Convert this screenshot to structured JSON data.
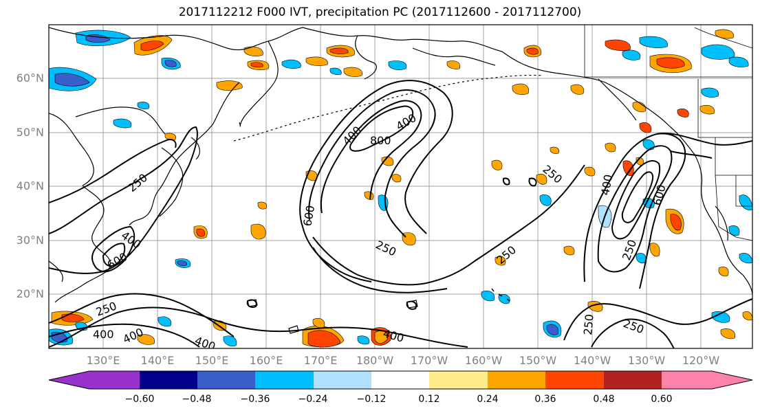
{
  "title": "2017112212 F000 IVT, precipitation PC (2017112600 - 2017112700)",
  "lat_labels": [
    "60°N",
    "50°N",
    "40°N",
    "30°N",
    "20°N"
  ],
  "lon_labels": [
    "130°E",
    "140°E",
    "150°E",
    "160°E",
    "170°E",
    "180°W",
    "170°W",
    "160°W",
    "150°W",
    "140°W",
    "130°W",
    "120°W"
  ],
  "colorbar": {
    "ticks": [
      "−0.60",
      "−0.48",
      "−0.36",
      "−0.24",
      "−0.12",
      "0.12",
      "0.24",
      "0.36",
      "0.48",
      "0.60"
    ],
    "colors": [
      "#9932cc",
      "#00008b",
      "#3a5fcd",
      "#00bfff",
      "#b0e2ff",
      "#ffffff",
      "#ffec8b",
      "#ffa500",
      "#ff4500",
      "#b22222",
      "#ff82ab"
    ]
  },
  "contour_labels": [
    "400",
    "800",
    "600",
    "250",
    "250",
    "250",
    "400",
    "600",
    "250",
    "400",
    "600",
    "250",
    "250",
    "400",
    "400",
    "400",
    "400",
    "250",
    "250",
    "400",
    "600",
    "250"
  ]
}
